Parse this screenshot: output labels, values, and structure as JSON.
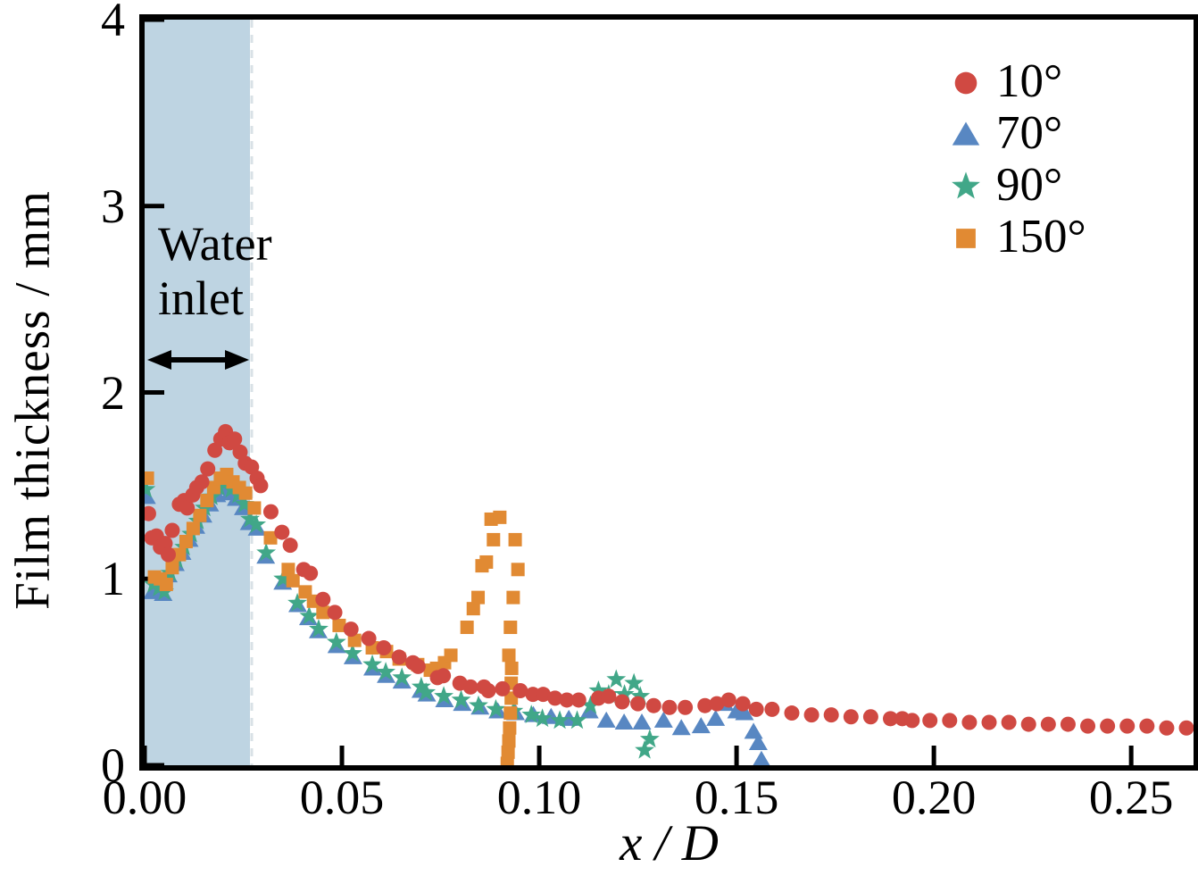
{
  "chart_data": {
    "type": "scatter",
    "title": "",
    "xlabel": "x / D",
    "ylabel": "Film thickness / mm",
    "xlim": [
      0,
      0.2658
    ],
    "ylim": [
      0,
      4
    ],
    "grid": false,
    "legend_position": "top-right",
    "x_ticks": [
      {
        "value": 0.0,
        "label": "0.00"
      },
      {
        "value": 0.05,
        "label": "0.05"
      },
      {
        "value": 0.1,
        "label": "0.10"
      },
      {
        "value": 0.15,
        "label": "0.15"
      },
      {
        "value": 0.2,
        "label": "0.20"
      },
      {
        "value": 0.25,
        "label": "0.25"
      }
    ],
    "y_ticks": [
      {
        "value": 0,
        "label": "0"
      },
      {
        "value": 1,
        "label": "1"
      },
      {
        "value": 2,
        "label": "2"
      },
      {
        "value": 3,
        "label": "3"
      },
      {
        "value": 4,
        "label": "4"
      }
    ],
    "shaded_region": {
      "label": "Water inlet",
      "label_lines": [
        "Water",
        "inlet"
      ],
      "x_start": 0,
      "x_end": 0.0267,
      "color": "#bed4e2",
      "edge_dash_color": "#d9e1e6"
    },
    "series": [
      {
        "name": "10°",
        "marker": "circle",
        "color": "#d04942",
        "points": [
          [
            0.001,
            1.35
          ],
          [
            0.0018,
            1.22
          ],
          [
            0.003,
            1.23
          ],
          [
            0.004,
            1.17
          ],
          [
            0.0052,
            1.19
          ],
          [
            0.006,
            1.13
          ],
          [
            0.007,
            1.26
          ],
          [
            0.0088,
            1.4
          ],
          [
            0.01,
            1.42
          ],
          [
            0.0108,
            1.38
          ],
          [
            0.0122,
            1.45
          ],
          [
            0.0132,
            1.49
          ],
          [
            0.0145,
            1.52
          ],
          [
            0.016,
            1.59
          ],
          [
            0.0178,
            1.69
          ],
          [
            0.0193,
            1.75
          ],
          [
            0.0205,
            1.79
          ],
          [
            0.0215,
            1.73
          ],
          [
            0.0228,
            1.75
          ],
          [
            0.0242,
            1.68
          ],
          [
            0.0255,
            1.62
          ],
          [
            0.0271,
            1.6
          ],
          [
            0.0285,
            1.54
          ],
          [
            0.0294,
            1.5
          ],
          [
            0.032,
            1.36
          ],
          [
            0.0348,
            1.25
          ],
          [
            0.0369,
            1.18
          ],
          [
            0.0403,
            1.05
          ],
          [
            0.042,
            1.03
          ],
          [
            0.0452,
            0.89
          ],
          [
            0.0482,
            0.82
          ],
          [
            0.0523,
            0.73
          ],
          [
            0.0568,
            0.68
          ],
          [
            0.0606,
            0.63
          ],
          [
            0.0645,
            0.58
          ],
          [
            0.068,
            0.55
          ],
          [
            0.0693,
            0.53
          ],
          [
            0.0742,
            0.47
          ],
          [
            0.0757,
            0.48
          ],
          [
            0.0799,
            0.44
          ],
          [
            0.0826,
            0.42
          ],
          [
            0.086,
            0.42
          ],
          [
            0.0871,
            0.4
          ],
          [
            0.0907,
            0.41
          ],
          [
            0.0952,
            0.4
          ],
          [
            0.0984,
            0.38
          ],
          [
            0.101,
            0.38
          ],
          [
            0.104,
            0.36
          ],
          [
            0.107,
            0.35
          ],
          [
            0.11,
            0.35
          ],
          [
            0.115,
            0.36
          ],
          [
            0.1176,
            0.37
          ],
          [
            0.121,
            0.34
          ],
          [
            0.125,
            0.33
          ],
          [
            0.129,
            0.32
          ],
          [
            0.133,
            0.31
          ],
          [
            0.137,
            0.31
          ],
          [
            0.142,
            0.32
          ],
          [
            0.145,
            0.33
          ],
          [
            0.148,
            0.35
          ],
          [
            0.1516,
            0.33
          ],
          [
            0.155,
            0.3
          ],
          [
            0.159,
            0.3
          ],
          [
            0.164,
            0.28
          ],
          [
            0.169,
            0.27
          ],
          [
            0.174,
            0.27
          ],
          [
            0.179,
            0.26
          ],
          [
            0.184,
            0.26
          ],
          [
            0.189,
            0.25
          ],
          [
            0.192,
            0.25
          ],
          [
            0.1945,
            0.24
          ],
          [
            0.199,
            0.24
          ],
          [
            0.204,
            0.24
          ],
          [
            0.209,
            0.23
          ],
          [
            0.214,
            0.23
          ],
          [
            0.219,
            0.23
          ],
          [
            0.224,
            0.22
          ],
          [
            0.229,
            0.22
          ],
          [
            0.234,
            0.22
          ],
          [
            0.239,
            0.21
          ],
          [
            0.244,
            0.21
          ],
          [
            0.249,
            0.21
          ],
          [
            0.254,
            0.21
          ],
          [
            0.259,
            0.2
          ],
          [
            0.264,
            0.2
          ]
        ]
      },
      {
        "name": "70°",
        "marker": "triangle",
        "color": "#5887c2",
        "points": [
          [
            0.0005,
            1.44
          ],
          [
            0.002,
            0.93
          ],
          [
            0.0033,
            0.95
          ],
          [
            0.0047,
            0.92
          ],
          [
            0.006,
            1.02
          ],
          [
            0.0078,
            1.08
          ],
          [
            0.0095,
            1.14
          ],
          [
            0.0113,
            1.21
          ],
          [
            0.013,
            1.28
          ],
          [
            0.0148,
            1.34
          ],
          [
            0.0165,
            1.4
          ],
          [
            0.0183,
            1.45
          ],
          [
            0.02,
            1.49
          ],
          [
            0.0215,
            1.46
          ],
          [
            0.0232,
            1.43
          ],
          [
            0.025,
            1.38
          ],
          [
            0.0265,
            1.3
          ],
          [
            0.0285,
            1.27
          ],
          [
            0.0307,
            1.12
          ],
          [
            0.035,
            0.98
          ],
          [
            0.0388,
            0.86
          ],
          [
            0.0415,
            0.79
          ],
          [
            0.044,
            0.72
          ],
          [
            0.0487,
            0.64
          ],
          [
            0.0528,
            0.58
          ],
          [
            0.0578,
            0.52
          ],
          [
            0.0612,
            0.48
          ],
          [
            0.0652,
            0.45
          ],
          [
            0.07,
            0.4
          ],
          [
            0.0715,
            0.38
          ],
          [
            0.076,
            0.35
          ],
          [
            0.0805,
            0.33
          ],
          [
            0.085,
            0.31
          ],
          [
            0.0895,
            0.29
          ],
          [
            0.094,
            0.28
          ],
          [
            0.0985,
            0.27
          ],
          [
            0.103,
            0.26
          ],
          [
            0.1075,
            0.25
          ],
          [
            0.1127,
            0.29
          ],
          [
            0.117,
            0.24
          ],
          [
            0.1215,
            0.23
          ],
          [
            0.126,
            0.23
          ],
          [
            0.1315,
            0.24
          ],
          [
            0.136,
            0.2
          ],
          [
            0.141,
            0.21
          ],
          [
            0.1447,
            0.25
          ],
          [
            0.147,
            0.33
          ],
          [
            0.15,
            0.29
          ],
          [
            0.152,
            0.28
          ],
          [
            0.1543,
            0.18
          ],
          [
            0.1555,
            0.12
          ],
          [
            0.1563,
            0.03
          ]
        ]
      },
      {
        "name": "90°",
        "marker": "star",
        "color": "#41a788",
        "points": [
          [
            0.0003,
            1.48
          ],
          [
            0.0022,
            0.97
          ],
          [
            0.0036,
            0.95
          ],
          [
            0.005,
            0.93
          ],
          [
            0.0065,
            1.03
          ],
          [
            0.0082,
            1.1
          ],
          [
            0.01,
            1.17
          ],
          [
            0.0118,
            1.24
          ],
          [
            0.0135,
            1.31
          ],
          [
            0.0152,
            1.38
          ],
          [
            0.017,
            1.44
          ],
          [
            0.0188,
            1.49
          ],
          [
            0.0205,
            1.52
          ],
          [
            0.022,
            1.48
          ],
          [
            0.0237,
            1.45
          ],
          [
            0.0253,
            1.4
          ],
          [
            0.0267,
            1.32
          ],
          [
            0.0283,
            1.29
          ],
          [
            0.0308,
            1.14
          ],
          [
            0.0351,
            1.0
          ],
          [
            0.0387,
            0.87
          ],
          [
            0.0417,
            0.8
          ],
          [
            0.0441,
            0.73
          ],
          [
            0.0486,
            0.66
          ],
          [
            0.0527,
            0.6
          ],
          [
            0.0577,
            0.54
          ],
          [
            0.0611,
            0.5
          ],
          [
            0.0652,
            0.47
          ],
          [
            0.0701,
            0.42
          ],
          [
            0.0713,
            0.39
          ],
          [
            0.0758,
            0.37
          ],
          [
            0.0802,
            0.35
          ],
          [
            0.0846,
            0.32
          ],
          [
            0.089,
            0.3
          ],
          [
            0.0935,
            0.29
          ],
          [
            0.098,
            0.27
          ],
          [
            0.1008,
            0.25
          ],
          [
            0.1052,
            0.24
          ],
          [
            0.1096,
            0.24
          ],
          [
            0.113,
            0.32
          ],
          [
            0.115,
            0.4
          ],
          [
            0.1176,
            0.38
          ],
          [
            0.1195,
            0.46
          ],
          [
            0.1216,
            0.38
          ],
          [
            0.124,
            0.44
          ],
          [
            0.1256,
            0.37
          ],
          [
            0.1267,
            0.08
          ],
          [
            0.128,
            0.14
          ]
        ]
      },
      {
        "name": "150°",
        "marker": "square",
        "color": "#e18a33",
        "points": [
          [
            0.0007,
            1.54
          ],
          [
            0.0025,
            1.01
          ],
          [
            0.004,
            1.0
          ],
          [
            0.0055,
            0.97
          ],
          [
            0.007,
            1.06
          ],
          [
            0.0088,
            1.13
          ],
          [
            0.0105,
            1.2
          ],
          [
            0.0123,
            1.27
          ],
          [
            0.014,
            1.34
          ],
          [
            0.0158,
            1.42
          ],
          [
            0.0175,
            1.49
          ],
          [
            0.0192,
            1.54
          ],
          [
            0.0208,
            1.56
          ],
          [
            0.0224,
            1.52
          ],
          [
            0.024,
            1.49
          ],
          [
            0.0256,
            1.46
          ],
          [
            0.0278,
            1.38
          ],
          [
            0.0319,
            1.22
          ],
          [
            0.0364,
            1.05
          ],
          [
            0.0376,
            0.99
          ],
          [
            0.0407,
            0.93
          ],
          [
            0.0428,
            0.88
          ],
          [
            0.0452,
            0.82
          ],
          [
            0.0493,
            0.75
          ],
          [
            0.0532,
            0.67
          ],
          [
            0.0577,
            0.63
          ],
          [
            0.0613,
            0.61
          ],
          [
            0.0645,
            0.57
          ],
          [
            0.0692,
            0.54
          ],
          [
            0.0724,
            0.51
          ],
          [
            0.074,
            0.52
          ],
          [
            0.076,
            0.55
          ],
          [
            0.0776,
            0.59
          ],
          [
            0.0817,
            0.74
          ],
          [
            0.0833,
            0.84
          ],
          [
            0.0845,
            0.9
          ],
          [
            0.0855,
            1.07
          ],
          [
            0.0866,
            1.09
          ],
          [
            0.0878,
            1.32
          ],
          [
            0.0884,
            1.21
          ],
          [
            0.09,
            1.33
          ],
          [
            0.0939,
            1.21
          ],
          [
            0.0946,
            1.05
          ],
          [
            0.0934,
            0.9
          ],
          [
            0.0927,
            0.74
          ],
          [
            0.0923,
            0.59
          ],
          [
            0.093,
            0.52
          ],
          [
            0.0929,
            0.44
          ],
          [
            0.0929,
            0.36
          ],
          [
            0.0927,
            0.28
          ],
          [
            0.0925,
            0.2
          ],
          [
            0.0923,
            0.13
          ],
          [
            0.0921,
            0.07
          ],
          [
            0.0919,
            0.01
          ]
        ]
      }
    ]
  }
}
